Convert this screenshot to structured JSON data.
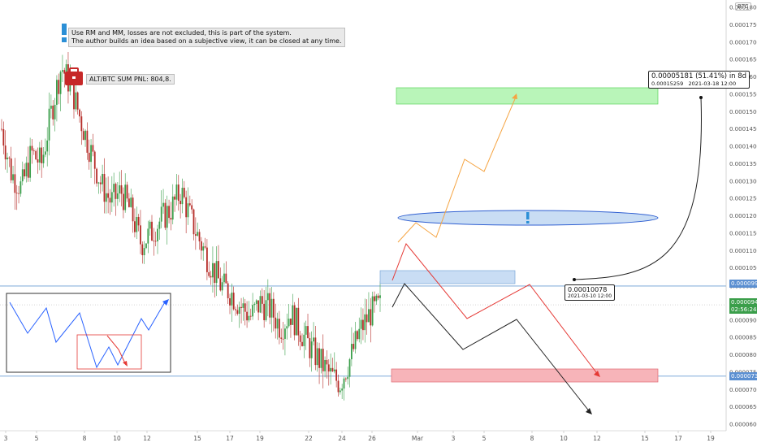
{
  "axis": {
    "currency": "BTC",
    "y_ticks": [
      "0.00018000",
      "0.00017500",
      "0.00017000",
      "0.00016500",
      "0.00016000",
      "0.00015500",
      "0.00015000",
      "0.00014500",
      "0.00014000",
      "0.00013500",
      "0.00013000",
      "0.00012500",
      "0.00012000",
      "0.00011500",
      "0.00011000",
      "0.00010500",
      "0.00009977",
      "0.00009437",
      "0.00009000",
      "0.00008500",
      "0.00008000",
      "0.00007500",
      "0.00007384",
      "0.00007000",
      "0.00006500",
      "0.00006000"
    ],
    "x_ticks": [
      "3",
      "5",
      "8",
      "10",
      "12",
      "15",
      "17",
      "19",
      "22",
      "24",
      "26",
      "Mar",
      "3",
      "5",
      "8",
      "10",
      "12",
      "15",
      "17",
      "19"
    ],
    "current_price": "0.00009437",
    "countdown": "02:56:24",
    "level_upper": "0.00009977",
    "level_lower": "0.00007384"
  },
  "note": {
    "line1": "Use RM and MM, losses are not excluded, this is part of the system.",
    "line2": "The author builds an idea based on a subjective view, it can be closed at any time."
  },
  "pnl": {
    "text": "ALT/BTC SUM PNL: 804,8."
  },
  "callouts": {
    "target": {
      "line1": "0.00005181 (51.41%) in 8d",
      "line2a": "0.00015259",
      "line2b": "2021-03-18  12:00"
    },
    "entry": {
      "line1": "0.00010078",
      "line2": "2021-03-10 12:00"
    }
  },
  "colors": {
    "up": "#26a69a",
    "down": "#ef5350",
    "candle_up": "#3a9e4a",
    "candle_down": "#b52b27",
    "level": "#6a9ed3",
    "orange": "#f5a442",
    "red": "#e53935",
    "blue": "#2962ff"
  },
  "chart_data": {
    "type": "candlestick",
    "pair": "ALT/BTC",
    "ylim": [
      6e-05,
      0.00018
    ],
    "close_series_approx": [
      0.000145,
      0.000132,
      0.000128,
      0.000138,
      0.000135,
      0.00015,
      0.000163,
      0.000157,
      0.000147,
      0.000138,
      0.000129,
      0.000124,
      0.000127,
      0.000121,
      0.000112,
      0.000115,
      0.000119,
      0.000122,
      0.000127,
      0.000119,
      0.000112,
      0.000106,
      0.0001,
      9.8e-05,
      9.4e-05,
      9.1e-05,
      9.5e-05,
      9.3e-05,
      8.8e-05,
      9.2e-05,
      8.7e-05,
      8.2e-05,
      7.8e-05,
      7.4e-05,
      7.2e-05,
      7.9e-05,
      8.7e-05,
      9.2e-05,
      9.4e-05
    ],
    "levels": [
      9.977e-05,
      7.384e-05
    ],
    "zones": [
      {
        "name": "target zone",
        "from": 0.0001505,
        "to": 0.0001555
      },
      {
        "name": "entry zone",
        "from": 9.98e-05,
        "to": 0.000103
      },
      {
        "name": "stop zone",
        "from": 7.18e-05,
        "to": 7.6e-05
      }
    ],
    "projection_points": 0.00015259
  }
}
